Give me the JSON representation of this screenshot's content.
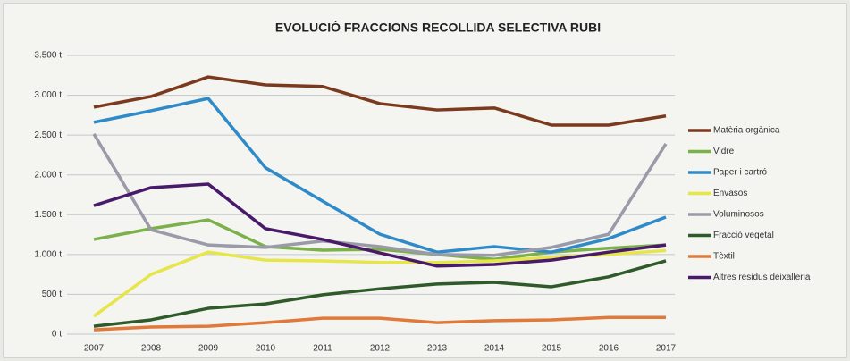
{
  "chart_data": {
    "type": "line",
    "title": "EVOLUCIÓ FRACCIONS RECOLLIDA SELECTIVA RUBI",
    "categories": [
      "2007",
      "2008",
      "2009",
      "2010",
      "2011",
      "2012",
      "2013",
      "2014",
      "2015",
      "2016",
      "2017"
    ],
    "ylim": [
      0,
      3500
    ],
    "yticks": [
      {
        "value": 0,
        "label": "0 t"
      },
      {
        "value": 500,
        "label": "500 t"
      },
      {
        "value": 1000,
        "label": "1.000 t"
      },
      {
        "value": 1500,
        "label": "1.500 t"
      },
      {
        "value": 2000,
        "label": "2.000 t"
      },
      {
        "value": 2500,
        "label": "2.500 t"
      },
      {
        "value": 3000,
        "label": "3.000 t"
      },
      {
        "value": 3500,
        "label": "3.500 t"
      }
    ],
    "grid": true,
    "legend": "right",
    "series": [
      {
        "name": "Matèria orgànica",
        "color": "#7b3a1e",
        "values": [
          2850,
          2985,
          3230,
          3130,
          3110,
          2895,
          2815,
          2840,
          2625,
          2625,
          2740
        ]
      },
      {
        "name": "Vidre",
        "color": "#7bb04a",
        "values": [
          1190,
          1325,
          1435,
          1100,
          1055,
          1065,
          1000,
          940,
          1030,
          1080,
          1120
        ]
      },
      {
        "name": "Paper i cartró",
        "color": "#2e8bc8",
        "values": [
          2660,
          2805,
          2960,
          2090,
          1670,
          1255,
          1030,
          1100,
          1030,
          1200,
          1470
        ]
      },
      {
        "name": "Envasos",
        "color": "#e6e64a",
        "values": [
          225,
          750,
          1030,
          930,
          920,
          900,
          900,
          920,
          965,
          1000,
          1050
        ]
      },
      {
        "name": "Voluminosos",
        "color": "#9a9aa8",
        "values": [
          2515,
          1310,
          1120,
          1090,
          1170,
          1100,
          1000,
          990,
          1090,
          1255,
          2390
        ]
      },
      {
        "name": "Fracció vegetal",
        "color": "#2f5a2a",
        "values": [
          100,
          180,
          325,
          380,
          495,
          570,
          630,
          650,
          595,
          720,
          920
        ]
      },
      {
        "name": "Tèxtil",
        "color": "#e07a3a",
        "values": [
          55,
          90,
          100,
          145,
          200,
          200,
          145,
          170,
          180,
          210,
          210
        ]
      },
      {
        "name": "Altres residus deixalleria",
        "color": "#4a1a6a",
        "values": [
          1615,
          1840,
          1885,
          1325,
          1190,
          1020,
          855,
          875,
          930,
          1030,
          1120
        ]
      }
    ]
  }
}
